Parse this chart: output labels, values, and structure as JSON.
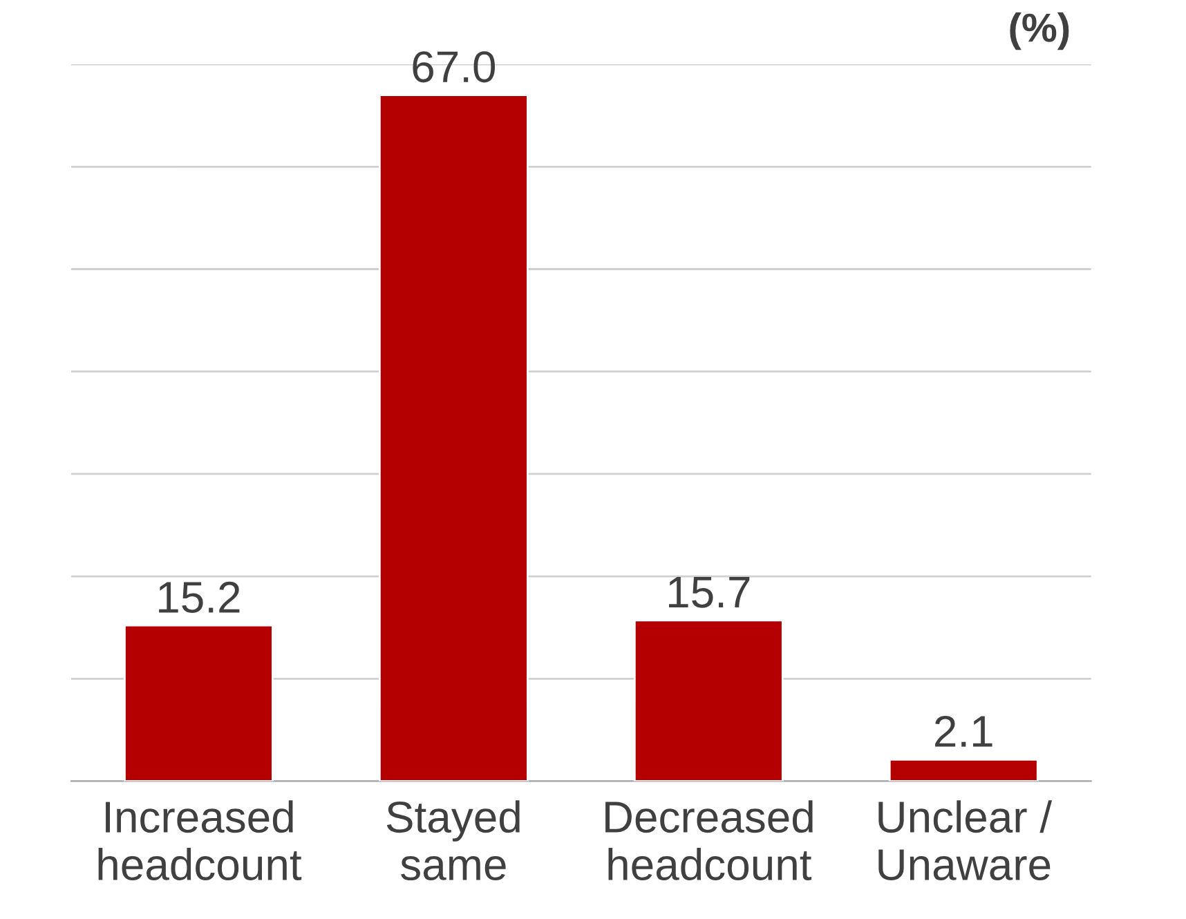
{
  "chart_data": {
    "type": "bar",
    "categories": [
      "Increased\nheadcount",
      "Stayed\nsame",
      "Decreased\nheadcount",
      "Unclear /\nUnaware"
    ],
    "values": [
      15.2,
      67.0,
      15.7,
      2.1
    ],
    "color": "#b40000",
    "value_labels": [
      "15.2",
      "67.0",
      "15.7",
      "2.1"
    ],
    "ylim": [
      0,
      70
    ],
    "yticks": [
      {
        "value": 0,
        "label": null
      },
      {
        "value": 10,
        "label": null
      },
      {
        "value": 20,
        "label": null
      },
      {
        "value": 30,
        "label": null
      },
      {
        "value": 40,
        "label": null
      },
      {
        "value": 50,
        "label": null
      },
      {
        "value": 60,
        "label": null
      },
      {
        "value": 70,
        "label": null
      }
    ],
    "grid": "y",
    "tick_labels": "x",
    "annotations": [
      "(%)"
    ]
  }
}
